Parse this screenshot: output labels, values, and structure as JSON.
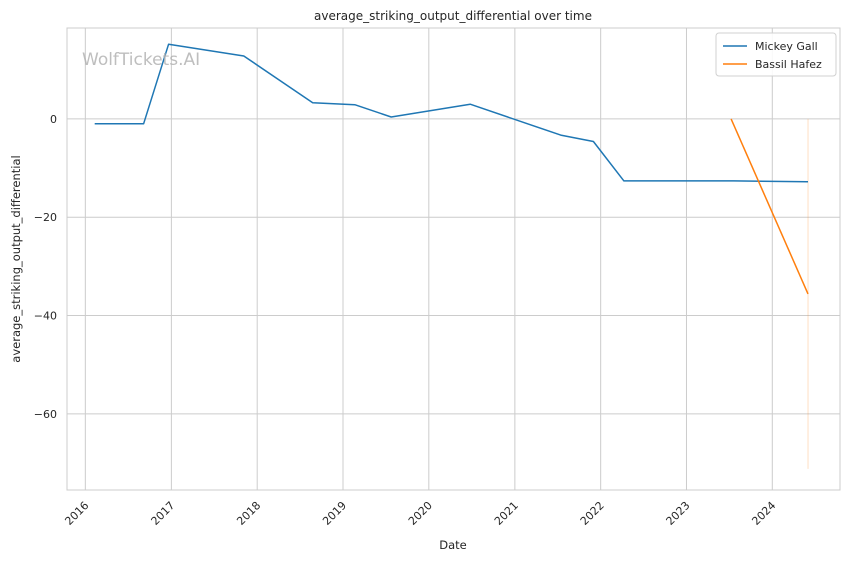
{
  "chart_data": {
    "type": "line",
    "title": "average_striking_output_differential over time",
    "xlabel": "Date",
    "ylabel": "average_striking_output_differential",
    "watermark": "WolfTickets.AI",
    "x_ticks": [
      "2016",
      "2017",
      "2018",
      "2019",
      "2020",
      "2021",
      "2022",
      "2023",
      "2024"
    ],
    "xlim": [
      "2015-10-15",
      "2024-10-15"
    ],
    "y_ticks": [
      0,
      -20,
      -40,
      -60
    ],
    "ylim": [
      -75.5,
      18.5
    ],
    "grid": true,
    "legend_position": "top-right",
    "series": [
      {
        "name": "Mickey Gall",
        "color": "#1f77b4",
        "points": [
          [
            "2016-02-10",
            -1.0
          ],
          [
            "2016-09-05",
            -1.0
          ],
          [
            "2016-12-20",
            15.2
          ],
          [
            "2017-11-05",
            12.8
          ],
          [
            "2018-08-25",
            3.3
          ],
          [
            "2019-02-20",
            2.9
          ],
          [
            "2019-07-25",
            0.4
          ],
          [
            "2020-06-25",
            3.0
          ],
          [
            "2021-07-15",
            -3.3
          ],
          [
            "2021-12-01",
            -4.6
          ],
          [
            "2022-04-10",
            -12.6
          ],
          [
            "2023-07-20",
            -12.6
          ],
          [
            "2024-06-01",
            -12.8
          ]
        ]
      },
      {
        "name": "Bassil Hafez",
        "color": "#ff7f0e",
        "points": [
          [
            "2023-07-10",
            0.0
          ],
          [
            "2024-06-01",
            -35.6
          ]
        ]
      }
    ],
    "annotations": [
      {
        "type": "vertical-band",
        "x": "2024-06-01",
        "y_range": [
          -71.2,
          0.0
        ],
        "color": "#ff7f0e"
      }
    ]
  }
}
